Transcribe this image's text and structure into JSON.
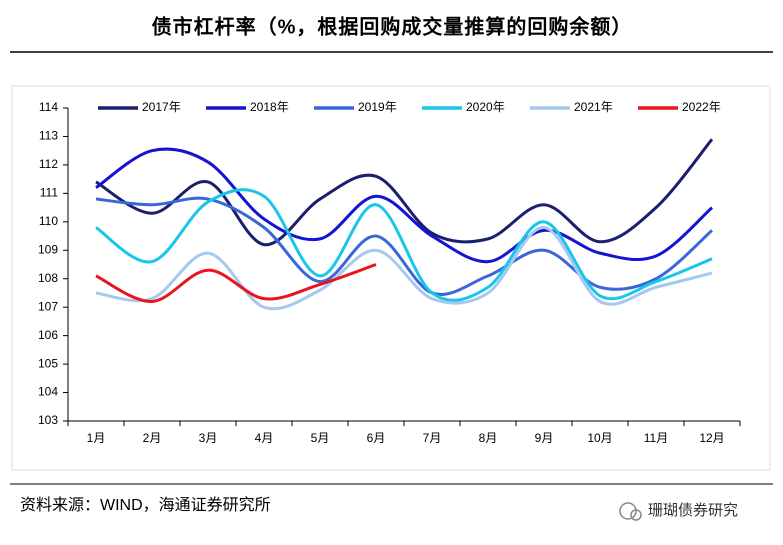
{
  "chart_data": {
    "type": "line",
    "title": "债市杠杆率（%，根据回购成交量推算的回购余额）",
    "source": "资料来源：WIND，海通证券研究所",
    "watermark": "珊瑚债券研究",
    "categories": [
      "1月",
      "2月",
      "3月",
      "4月",
      "5月",
      "6月",
      "7月",
      "8月",
      "9月",
      "10月",
      "11月",
      "12月"
    ],
    "series": [
      {
        "name": "2017年",
        "color": "#1b1f6e",
        "values": [
          111.4,
          110.3,
          111.4,
          109.2,
          110.8,
          111.6,
          109.6,
          109.4,
          110.6,
          109.3,
          110.5,
          112.9
        ]
      },
      {
        "name": "2018年",
        "color": "#1414d2",
        "values": [
          111.2,
          112.5,
          112.1,
          110.1,
          109.4,
          110.9,
          109.5,
          108.6,
          109.7,
          108.9,
          108.8,
          110.5
        ]
      },
      {
        "name": "2019年",
        "color": "#3a66d8",
        "values": [
          110.8,
          110.6,
          110.8,
          109.8,
          107.9,
          109.5,
          107.5,
          108.1,
          109.0,
          107.7,
          108.0,
          109.7
        ]
      },
      {
        "name": "2020年",
        "color": "#18c6ea",
        "values": [
          109.8,
          108.6,
          110.7,
          110.9,
          108.1,
          110.6,
          107.5,
          107.7,
          110.0,
          107.4,
          107.9,
          108.7
        ]
      },
      {
        "name": "2021年",
        "color": "#a6c8f0",
        "values": [
          107.5,
          107.3,
          108.9,
          107.0,
          107.6,
          109.0,
          107.3,
          107.5,
          109.8,
          107.2,
          107.7,
          108.2
        ]
      },
      {
        "name": "2022年",
        "color": "#e8141e",
        "values": [
          108.1,
          107.2,
          108.3,
          107.3,
          107.8,
          108.5,
          null,
          null,
          null,
          null,
          null,
          null
        ]
      }
    ],
    "ylim": [
      103,
      114
    ],
    "yticks": [
      103,
      104,
      105,
      106,
      107,
      108,
      109,
      110,
      111,
      112,
      113,
      114
    ],
    "grid": false,
    "smooth": true
  }
}
